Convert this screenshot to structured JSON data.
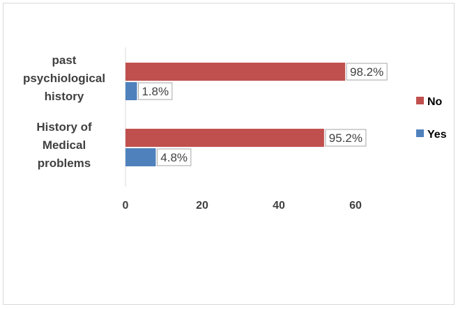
{
  "chart_data": {
    "type": "bar",
    "orientation": "horizontal",
    "title": "",
    "xlabel": "",
    "ylabel": "",
    "categories": [
      [
        "past",
        "psychiological",
        "history"
      ],
      [
        "History of",
        "Medical",
        "problems"
      ]
    ],
    "series": [
      {
        "name": "No",
        "color": "#c0504d",
        "values": [
          57.3,
          51.8
        ],
        "labels": [
          "98.2%",
          "95.2%"
        ]
      },
      {
        "name": "Yes",
        "color": "#4f81bd",
        "values": [
          3.0,
          7.9
        ],
        "labels": [
          "1.8%",
          "4.8%"
        ]
      }
    ],
    "xlim": [
      0,
      72
    ],
    "xticks": [
      "0",
      "20",
      "40",
      "60"
    ],
    "grid": false,
    "legend_position": "right"
  }
}
